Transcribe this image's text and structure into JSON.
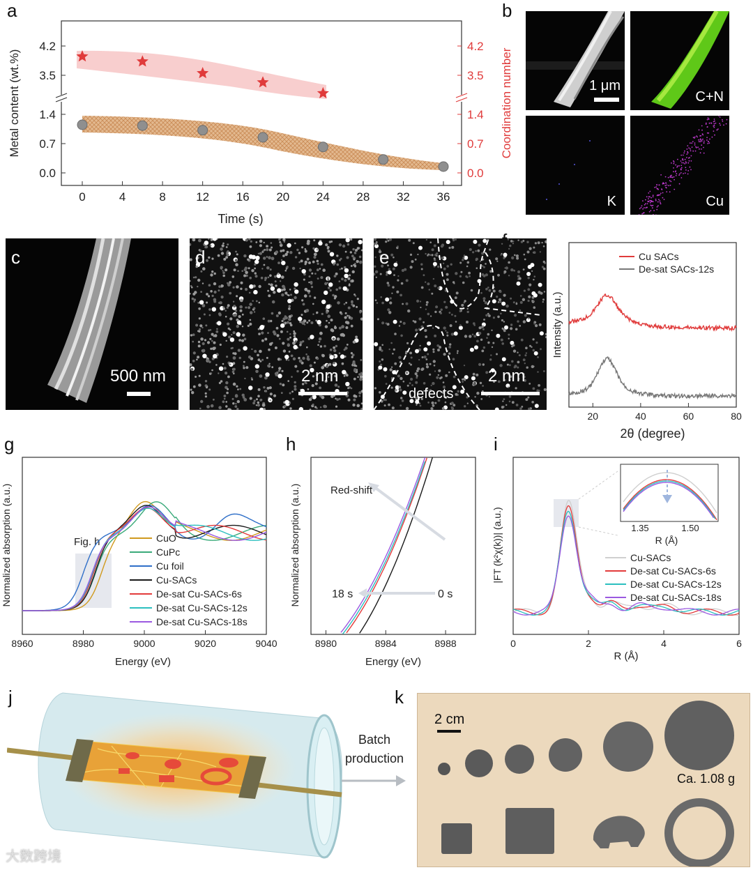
{
  "panels": {
    "a": "a",
    "b": "b",
    "c": "c",
    "d": "d",
    "e": "e",
    "f": "f",
    "g": "g",
    "h": "h",
    "i": "i",
    "j": "j",
    "k": "k"
  },
  "b": {
    "scale": "1 μm",
    "maps": {
      "cn": "C+N",
      "k": "K",
      "cu": "Cu"
    }
  },
  "c": {
    "scale": "500 nm"
  },
  "d": {
    "scale": "2 nm"
  },
  "e": {
    "scale": "2 nm",
    "defects": "defects"
  },
  "j": {
    "arrow": "Batch production"
  },
  "k": {
    "scale": "2 cm",
    "mass": "Ca. 1.08 g"
  },
  "watermark": "大数跨境",
  "colors": {
    "red": "#e03b3b",
    "gray": "#777777",
    "cuo": "#d09a1e",
    "cupc": "#3aaa7a",
    "cufoil": "#2f6fc8",
    "cusacs": "#1a1a1a",
    "s6": "#e33b3b",
    "s12": "#2bbfbf",
    "s18": "#9b59e0"
  },
  "chart_data": [
    {
      "id": "a",
      "type": "scatter",
      "title": "",
      "xlabel": "Time (s)",
      "ylabel": "Metal content (wt.%)",
      "y2label": "Coordination number",
      "xticks": [
        0,
        4,
        8,
        12,
        16,
        20,
        24,
        28,
        32,
        36
      ],
      "yticks_low": [
        "0.0",
        "0.7",
        "1.4"
      ],
      "yticks_high": [
        "3.5",
        "4.2"
      ],
      "y2ticks_low": [
        "0.0",
        "0.7",
        "1.4"
      ],
      "y2ticks_high": [
        "3.5",
        "4.2"
      ],
      "series": [
        {
          "name": "Coordination number",
          "marker": "star",
          "x": [
            0,
            6,
            12,
            18,
            24
          ],
          "y": [
            3.95,
            3.83,
            3.55,
            3.33,
            3.07
          ]
        },
        {
          "name": "Metal content",
          "marker": "circle",
          "x": [
            0,
            6,
            12,
            18,
            24,
            30,
            36
          ],
          "y": [
            1.15,
            1.13,
            1.02,
            0.85,
            0.62,
            0.32,
            0.15
          ]
        }
      ]
    },
    {
      "id": "f",
      "type": "line",
      "xlabel": "2θ (degree)",
      "ylabel": "Intensity (a.u.)",
      "xticks": [
        20,
        40,
        60,
        80
      ],
      "xlim": [
        10,
        80
      ],
      "legend": [
        "Cu SACs",
        "De-sat SACs-12s"
      ]
    },
    {
      "id": "g",
      "type": "line",
      "xlabel": "Energy (eV)",
      "ylabel": "Normalized absorption (a.u.)",
      "xticks": [
        8960,
        8980,
        9000,
        9020,
        9040
      ],
      "xlim": [
        8960,
        9040
      ],
      "annotation": "Fig. h",
      "legend": [
        "CuO",
        "CuPc",
        "Cu foil",
        "Cu-SACs",
        "De-sat Cu-SACs-6s",
        "De-sat Cu-SACs-12s",
        "De-sat Cu-SACs-18s"
      ]
    },
    {
      "id": "h",
      "type": "line",
      "xlabel": "Energy (eV)",
      "ylabel": "Normalized absorption (a.u.)",
      "xticks": [
        8980,
        8984,
        8988
      ],
      "xlim": [
        8979,
        8990
      ],
      "annotations": {
        "redshift": "Red-shift",
        "t18": "18 s",
        "t0": "0 s"
      }
    },
    {
      "id": "i",
      "type": "line",
      "xlabel": "R (Å)",
      "ylabel": "|FT (k²χ(k))| (a.u.)",
      "xticks": [
        0,
        2,
        4,
        6
      ],
      "xlim": [
        0,
        6
      ],
      "inset_xticks": [
        "1.35",
        "1.50"
      ],
      "inset_xlabel": "R (Å)",
      "legend": [
        "Cu-SACs",
        "De-sat Cu-SACs-6s",
        "De-sat Cu-SACs-12s",
        "De-sat Cu-SACs-18s"
      ]
    }
  ]
}
